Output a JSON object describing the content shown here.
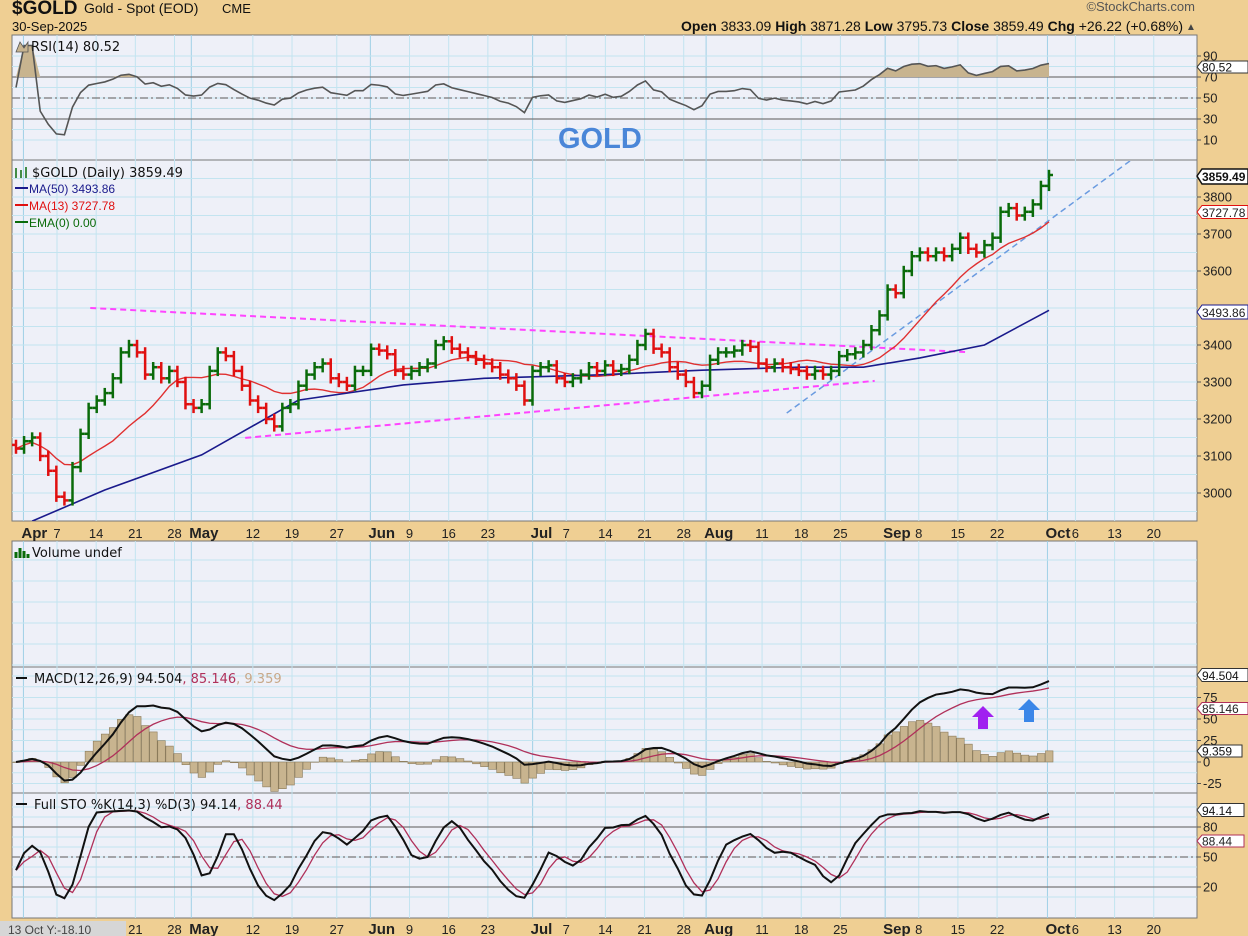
{
  "header": {
    "symbol": "$GOLD",
    "name": "Gold - Spot (EOD)",
    "exchange": "CME",
    "date": "30-Sep-2025",
    "brand": "©StockCharts.com",
    "open_label": "Open",
    "open": "3833.09",
    "high_label": "High",
    "high": "3871.28",
    "low_label": "Low",
    "low": "3795.73",
    "close_label": "Close",
    "close": "3859.49",
    "chg_label": "Chg",
    "chg": "+26.22 (+0.68%)",
    "up_arrow": "▲"
  },
  "annotation": "GOLD",
  "tooltip": "13 Oct Y:-18.10",
  "colors": {
    "background": "#efcf93",
    "plot": "#eef0f8",
    "up": "#0a6b0a",
    "down": "#e01010",
    "ma50": "#1a1a8c",
    "ma13": "#e03030",
    "trend_magenta": "#ff44ff",
    "trend_blue": "#6a9be0",
    "signal": "#b0305a",
    "hist": "#c8b48f",
    "arrow_purple": "#a020f0",
    "arrow_blue": "#3a86e8"
  },
  "chart_data": [
    {
      "type": "ohlc",
      "panel": "price",
      "title": "$GOLD (Daily) 3859.49",
      "legend": [
        "MA(50) 3493.86",
        "MA(13) 3727.78",
        "EMA(0) 0.00"
      ],
      "start_date": "2025-03-31",
      "end_date": "2025-09-30",
      "closes": [
        3120,
        3140,
        3150,
        3100,
        3060,
        2990,
        2980,
        3070,
        3160,
        3230,
        3250,
        3270,
        3310,
        3380,
        3400,
        3380,
        3320,
        3340,
        3310,
        3330,
        3300,
        3240,
        3230,
        3240,
        3330,
        3380,
        3370,
        3330,
        3290,
        3250,
        3230,
        3200,
        3180,
        3230,
        3240,
        3290,
        3320,
        3340,
        3350,
        3310,
        3300,
        3290,
        3330,
        3330,
        3390,
        3385,
        3375,
        3330,
        3320,
        3330,
        3340,
        3350,
        3400,
        3410,
        3390,
        3380,
        3370,
        3360,
        3350,
        3340,
        3320,
        3310,
        3290,
        3250,
        3330,
        3340,
        3345,
        3310,
        3300,
        3310,
        3320,
        3340,
        3330,
        3345,
        3330,
        3335,
        3360,
        3400,
        3430,
        3390,
        3380,
        3340,
        3320,
        3300,
        3270,
        3290,
        3360,
        3380,
        3380,
        3385,
        3400,
        3395,
        3350,
        3340,
        3350,
        3340,
        3335,
        3330,
        3320,
        3330,
        3320,
        3330,
        3370,
        3375,
        3380,
        3400,
        3440,
        3480,
        3550,
        3540,
        3600,
        3640,
        3650,
        3640,
        3650,
        3640,
        3660,
        3690,
        3660,
        3650,
        3670,
        3690,
        3760,
        3770,
        3750,
        3760,
        3780,
        3830,
        3859.49
      ],
      "ma50_points": [
        [
          2,
          2924
        ],
        [
          11,
          3008
        ],
        [
          23,
          3103
        ],
        [
          35,
          3251
        ],
        [
          48,
          3292
        ],
        [
          58,
          3310
        ],
        [
          72,
          3319
        ],
        [
          85,
          3332
        ],
        [
          97,
          3340
        ],
        [
          105,
          3340
        ],
        [
          112,
          3365
        ],
        [
          120,
          3400
        ],
        [
          128,
          3493.86
        ]
      ],
      "trendlines": [
        {
          "name": "upper-resistance",
          "color": "magenta",
          "from": [
            9.2,
            3500
          ],
          "to": [
            117.6,
            3381
          ]
        },
        {
          "name": "lower-support",
          "color": "magenta",
          "from": [
            28.4,
            3149
          ],
          "to": [
            106.4,
            3303
          ]
        },
        {
          "name": "rising-support",
          "color": "blue",
          "from": [
            95.5,
            3216
          ],
          "to": [
            139,
            3913
          ]
        }
      ],
      "yticks": [
        3000,
        3100,
        3200,
        3300,
        3400,
        3500,
        3600,
        3700,
        3800
      ],
      "ylim": [
        2920,
        3900
      ],
      "last_tags": {
        "close": "3859.49",
        "ma13": "3727.78",
        "ma50": "3493.86"
      }
    },
    {
      "type": "line",
      "panel": "rsi",
      "title": "RSI(14) 80.52",
      "period": 14,
      "yticks": [
        10,
        30,
        50,
        70,
        90
      ],
      "ylim": [
        0,
        100
      ],
      "last": "80.52"
    },
    {
      "type": "bar",
      "panel": "volume",
      "title": "Volume undef"
    },
    {
      "type": "line",
      "panel": "macd",
      "title_prefix": "MACD(12,26,9)",
      "macd": "94.504",
      "signal": "85.146",
      "histogram": "9.359",
      "yticks": [
        -25,
        0,
        25,
        50,
        75
      ],
      "ylim": [
        -40,
        100
      ],
      "annotations": [
        {
          "type": "up-arrow",
          "color": "purple",
          "at": [
            119,
            45
          ]
        },
        {
          "type": "up-arrow",
          "color": "blue",
          "at": [
            125,
            54
          ]
        }
      ]
    },
    {
      "type": "line",
      "panel": "stochastic",
      "title_prefix": "Full STO %K(14,3) %D(3)",
      "k": "94.14",
      "d": "88.44",
      "yticks": [
        20,
        50,
        80
      ],
      "ylim": [
        0,
        100
      ]
    }
  ],
  "x_axis": [
    {
      "text": "Apr",
      "date": "2025-04-01",
      "bold": true
    },
    {
      "text": "7",
      "date": "2025-04-07"
    },
    {
      "text": "14",
      "date": "2025-04-14"
    },
    {
      "text": "21",
      "date": "2025-04-21"
    },
    {
      "text": "28",
      "date": "2025-04-28"
    },
    {
      "text": "May",
      "date": "2025-05-01",
      "bold": true
    },
    {
      "text": "12",
      "date": "2025-05-12"
    },
    {
      "text": "19",
      "date": "2025-05-19"
    },
    {
      "text": "27",
      "date": "2025-05-27"
    },
    {
      "text": "Jun",
      "date": "2025-06-02",
      "bold": true
    },
    {
      "text": "9",
      "date": "2025-06-09"
    },
    {
      "text": "16",
      "date": "2025-06-16"
    },
    {
      "text": "23",
      "date": "2025-06-23"
    },
    {
      "text": "Jul",
      "date": "2025-07-01",
      "bold": true
    },
    {
      "text": "7",
      "date": "2025-07-07"
    },
    {
      "text": "14",
      "date": "2025-07-14"
    },
    {
      "text": "21",
      "date": "2025-07-21"
    },
    {
      "text": "28",
      "date": "2025-07-28"
    },
    {
      "text": "Aug",
      "date": "2025-08-01",
      "bold": true
    },
    {
      "text": "11",
      "date": "2025-08-11"
    },
    {
      "text": "18",
      "date": "2025-08-18"
    },
    {
      "text": "25",
      "date": "2025-08-25"
    },
    {
      "text": "Sep",
      "date": "2025-09-02",
      "bold": true
    },
    {
      "text": "8",
      "date": "2025-09-08"
    },
    {
      "text": "15",
      "date": "2025-09-15"
    },
    {
      "text": "22",
      "date": "2025-09-22"
    },
    {
      "text": "Oct",
      "date": "2025-10-01",
      "bold": true
    },
    {
      "text": "6",
      "date": "2025-10-06"
    },
    {
      "text": "13",
      "date": "2025-10-13"
    },
    {
      "text": "20",
      "date": "2025-10-20"
    }
  ],
  "rsi_legend": "RSI(14) 80.52",
  "price_legend": {
    "title": "$GOLD (Daily) 3859.49",
    "ma50": "MA(50) 3493.86",
    "ma13": "MA(13) 3727.78",
    "ema": "EMA(0) 0.00"
  },
  "volume_legend": "Volume undef",
  "macd_legend": {
    "name": "MACD(12,26,9)",
    "macd": "94.504",
    "signal": ", 85.146",
    "hist": ", 9.359"
  },
  "sto_legend": {
    "name": "Full STO %K(14,3) %D(3)",
    "k": "94.14",
    "d": ", 88.44"
  },
  "right_axis": {
    "rsi": [
      "90",
      "70",
      "50",
      "30",
      "10"
    ],
    "price": [
      "3800",
      "3700",
      "3600",
      "3400",
      "3300",
      "3200",
      "3100",
      "3000"
    ],
    "macd": [
      "75",
      "50",
      "25",
      "0",
      "-25"
    ],
    "sto": [
      "80",
      "50",
      "20"
    ]
  },
  "tags": {
    "rsi": "80.52",
    "close": "3859.49",
    "ma13": "3727.78",
    "ma50": "3493.86",
    "macd": "94.504",
    "signal": "85.146",
    "hist": "9.359",
    "k": "94.14",
    "d": "88.44"
  }
}
